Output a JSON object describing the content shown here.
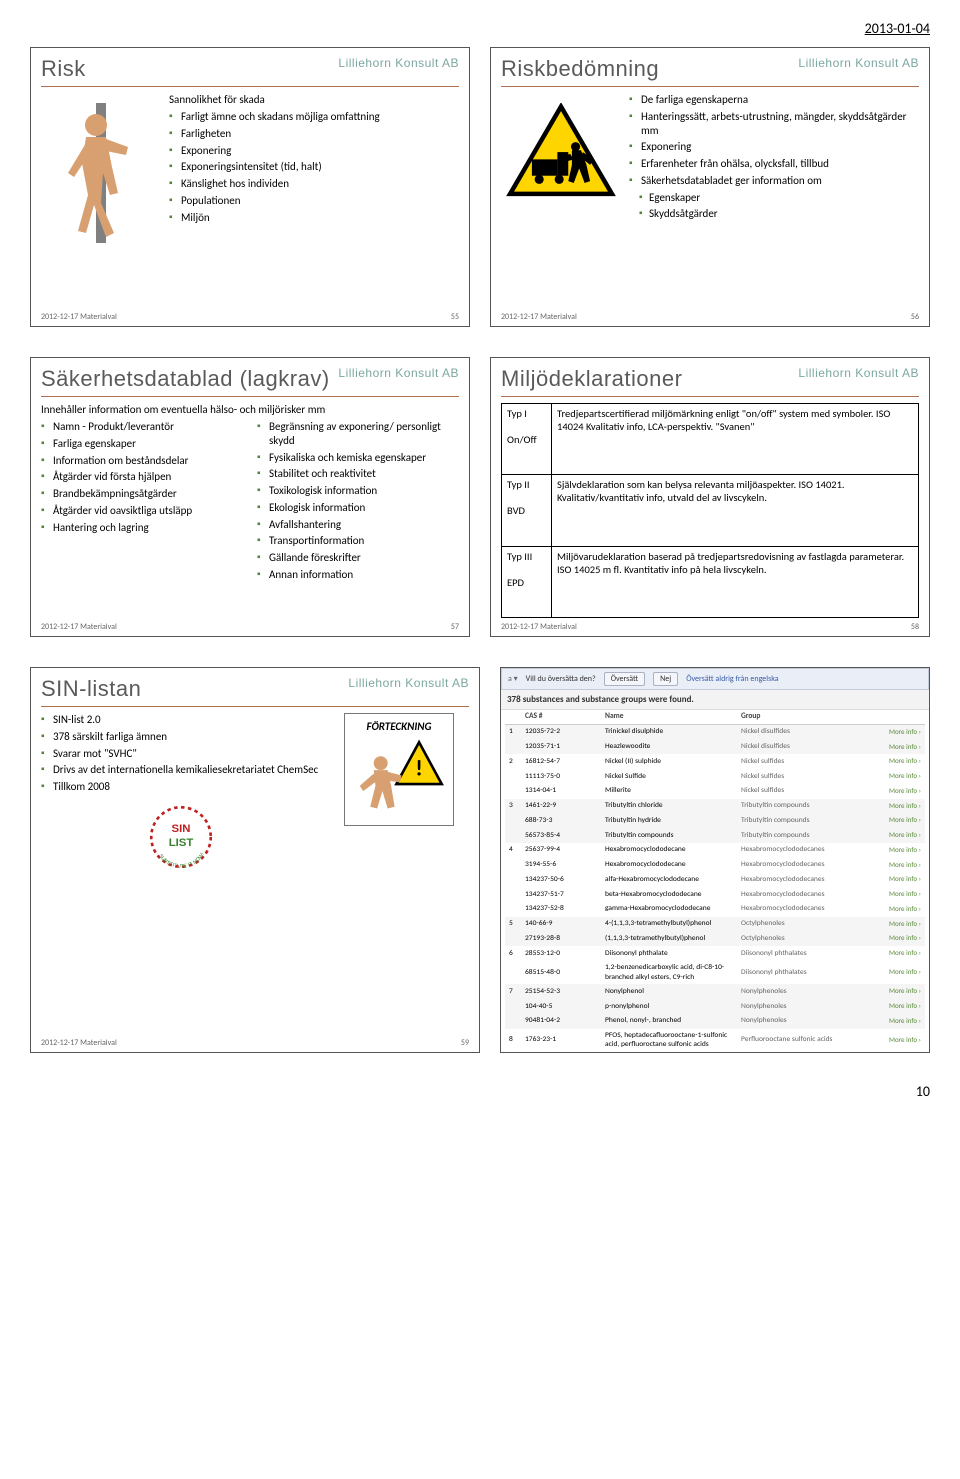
{
  "pageDate": "2013-01-04",
  "pageNumber": "10",
  "brand": "Lilliehorn Konsult AB",
  "footerText": "2012-12-17  Materialval",
  "slides": {
    "risk": {
      "title": "Risk",
      "num": "55",
      "subhead": "Sannolikhet för skada",
      "bullets": [
        "Farligt ämne och skadans möjliga omfattning",
        "Farligheten",
        "Exponering",
        "Exponeringsintensitet (tid, halt)",
        "Känslighet hos individen",
        "Populationen",
        "Miljön"
      ]
    },
    "riskbed": {
      "title": "Riskbedömning",
      "num": "56",
      "bullets": [
        "De farliga egenskaperna",
        "Hanteringssätt, arbets-utrustning, mängder, skyddsåtgärder mm",
        "Exponering",
        "Erfarenheter från ohälsa, olycksfall, tillbud",
        "Säkerhetsdatabladet ger information om"
      ],
      "sub": [
        "Egenskaper",
        "Skyddsåtgärder"
      ]
    },
    "sdb": {
      "title": "Säkerhetsdatablad (lagkrav)",
      "num": "57",
      "subhead": "Innehåller information om eventuella hälso- och miljörisker mm",
      "left": [
        "Namn - Produkt/leverantör",
        "Farliga egenskaper",
        "Information om beståndsdelar",
        "Åtgärder vid första hjälpen",
        "Brandbekämpningsåtgärder",
        "Åtgärder vid oavsiktliga utsläpp",
        "Hantering och lagring"
      ],
      "right": [
        "Begränsning av exponering/ personligt skydd",
        "Fysikaliska och kemiska egenskaper",
        "Stabilitet och reaktivitet",
        "Toxikologisk information",
        "Ekologisk information",
        "Avfallshantering",
        "Transportinformation",
        "Gällande föreskrifter",
        "Annan information"
      ]
    },
    "miljo": {
      "title": "Miljödeklarationer",
      "num": "58",
      "rows": [
        {
          "k1": "Typ I",
          "k2": "On/Off",
          "v": "Tredjepartscertifierad miljömärkning enligt \"on/off\" system med symboler. ISO 14024 Kvalitativ info, LCA-perspektiv. \"Svanen\""
        },
        {
          "k1": "Typ II",
          "k2": "BVD",
          "v": "Självdeklaration som kan belysa relevanta miljöaspekter. ISO 14021. Kvalitativ/kvantitativ info, utvald del av livscykeln."
        },
        {
          "k1": "Typ III",
          "k2": "EPD",
          "v": "Miljövarudeklaration baserad på tredjepartsredovisning av fastlagda parameterar. ISO 14025 m fl. Kvantitativ info på hela livscykeln."
        }
      ]
    },
    "sin": {
      "title": "SIN-listan",
      "num": "59",
      "fortLabel": "FÖRTECKNING",
      "bullets": [
        "SIN-list 2.0",
        "378 särskilt farliga ämnen",
        "Svarar mot \"SVHC\"",
        "Drivs av det internationella kemikaliesekretariatet ChemSec",
        "Tillkom 2008"
      ]
    },
    "table": {
      "transPrompt": "Vill du översätta den?",
      "btn1": "Översätt",
      "btn2": "Nej",
      "btn3": "Översätt aldrig från engelska",
      "resultLine": "378 substances and substance groups were found.",
      "headers": [
        "",
        "CAS #",
        "Name",
        "Group",
        ""
      ],
      "moreLabel": "More info",
      "rows": [
        {
          "n": "1",
          "cas": "12035-72-2",
          "name": "Trinickel disulphide",
          "group": "Nickel disulfides",
          "alt": "a"
        },
        {
          "n": "",
          "cas": "12035-71-1",
          "name": "Heazlewoodite",
          "group": "Nickel disulfides",
          "alt": "a"
        },
        {
          "n": "2",
          "cas": "16812-54-7",
          "name": "Nickel (II) sulphide",
          "group": "Nickel sulfides",
          "alt": "b"
        },
        {
          "n": "",
          "cas": "11113-75-0",
          "name": "Nickel Sulfide",
          "group": "Nickel sulfides",
          "alt": "b"
        },
        {
          "n": "",
          "cas": "1314-04-1",
          "name": "Millerite",
          "group": "Nickel sulfides",
          "alt": "b"
        },
        {
          "n": "3",
          "cas": "1461-22-9",
          "name": "Tributyltin chloride",
          "group": "Tributyltin compounds",
          "alt": "a"
        },
        {
          "n": "",
          "cas": "688-73-3",
          "name": "Tributyltin hydride",
          "group": "Tributyltin compounds",
          "alt": "a"
        },
        {
          "n": "",
          "cas": "56573-85-4",
          "name": "Tributyltin compounds",
          "group": "Tributyltin compounds",
          "alt": "a"
        },
        {
          "n": "4",
          "cas": "25637-99-4",
          "name": "Hexabromocyclododecane",
          "group": "Hexabromocyclododecanes",
          "alt": "b"
        },
        {
          "n": "",
          "cas": "3194-55-6",
          "name": "Hexabromocyclododecane",
          "group": "Hexabromocyclododecanes",
          "alt": "b"
        },
        {
          "n": "",
          "cas": "134237-50-6",
          "name": "alfa-Hexabromocyclododecane",
          "group": "Hexabromocyclododecanes",
          "alt": "b"
        },
        {
          "n": "",
          "cas": "134237-51-7",
          "name": "beta-Hexabromocyclododecane",
          "group": "Hexabromocyclododecanes",
          "alt": "b"
        },
        {
          "n": "",
          "cas": "134237-52-8",
          "name": "gamma-Hexabromocyclododecane",
          "group": "Hexabromocyclododecanes",
          "alt": "b"
        },
        {
          "n": "5",
          "cas": "140-66-9",
          "name": "4-(1,1,3,3-tetramethylbutyl)phenol",
          "group": "Octylphenoles",
          "alt": "a"
        },
        {
          "n": "",
          "cas": "27193-28-8",
          "name": "(1,1,3,3-tetramethylbutyl)phenol",
          "group": "Octylphenoles",
          "alt": "a"
        },
        {
          "n": "6",
          "cas": "28553-12-0",
          "name": "Diisononyl phthalate",
          "group": "Diisononyl phthalates",
          "alt": "b"
        },
        {
          "n": "",
          "cas": "68515-48-0",
          "name": "1,2-benzenedicarboxylic acid, di-C8-10- branched alkyl esters, C9-rich",
          "group": "Diisononyl phthalates",
          "alt": "b"
        },
        {
          "n": "7",
          "cas": "25154-52-3",
          "name": "Nonylphenol",
          "group": "Nonylphenoles",
          "alt": "a"
        },
        {
          "n": "",
          "cas": "104-40-5",
          "name": "p-nonylphenol",
          "group": "Nonylphenoles",
          "alt": "a"
        },
        {
          "n": "",
          "cas": "90481-04-2",
          "name": "Phenol, nonyl-, branched",
          "group": "Nonylphenoles",
          "alt": "a"
        },
        {
          "n": "8",
          "cas": "1763-23-1",
          "name": "PFOS, heptadecafluorooctane-1-sulfonic acid, perfluoroctane sulfonic acids",
          "group": "Perfluorooctane sulfonic acids",
          "alt": "b"
        }
      ]
    }
  }
}
